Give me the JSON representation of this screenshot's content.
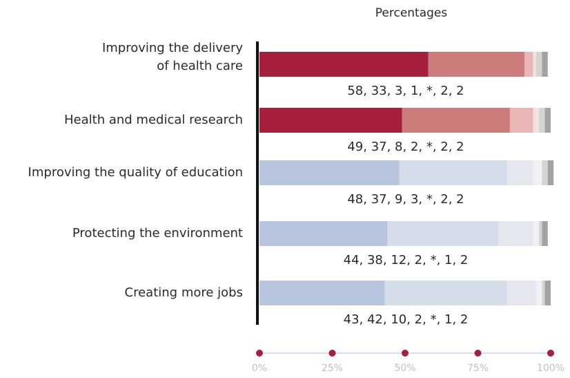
{
  "chart_data": {
    "type": "stacked_bar_horizontal",
    "title": "Percentages",
    "categories": [
      "Improving the delivery\nof health care",
      "Health and medical research",
      "Improving the quality of education",
      "Protecting the environment",
      "Creating more jobs"
    ],
    "series": [
      {
        "values": [
          58,
          49,
          48,
          44,
          43
        ],
        "colors": [
          "#a61f3d",
          "#a61f3d",
          "#b8c5de",
          "#b8c5de",
          "#b8c5de"
        ]
      },
      {
        "values": [
          33,
          37,
          37,
          38,
          42
        ],
        "colors": [
          "#cd7a7b",
          "#cd7a7b",
          "#d5dcea",
          "#d5dcea",
          "#d5dcea"
        ]
      },
      {
        "values": [
          3,
          8,
          9,
          12,
          10
        ],
        "colors": [
          "#e9b8b6",
          "#e9b8b6",
          "#e4e7ee",
          "#e4e7ee",
          "#e4e7ee"
        ]
      },
      {
        "values": [
          1,
          2,
          3,
          2,
          2
        ],
        "colors": [
          "#f3e2e1",
          "#f3e2e1",
          "#f0f1f4",
          "#f0f1f4",
          "#f0f1f4"
        ]
      },
      {
        "values": [
          0,
          0,
          0,
          0,
          0
        ],
        "colors": [
          "#ffffff",
          "#ffffff",
          "#ffffff",
          "#ffffff",
          "#ffffff"
        ]
      },
      {
        "values": [
          2,
          2,
          2,
          1,
          1
        ],
        "colors": [
          "#d4d4d4",
          "#d4d4d4",
          "#d4d4d4",
          "#d4d4d4",
          "#d4d4d4"
        ]
      },
      {
        "values": [
          2,
          2,
          2,
          2,
          2
        ],
        "colors": [
          "#a3a3a3",
          "#a3a3a3",
          "#a3a3a3",
          "#a3a3a3",
          "#a3a3a3"
        ]
      }
    ],
    "data_labels": [
      "58, 33, 3, 1, *, 2, 2",
      "49, 37, 8, 2, *, 2, 2",
      "48, 37, 9, 3, *, 2, 2",
      "44, 38, 12, 2, *, 1, 2",
      "43, 42, 10, 2, *, 1, 2"
    ],
    "xlim": [
      0,
      100
    ],
    "xticks": [
      {
        "value": 0,
        "label": "0%"
      },
      {
        "value": 25,
        "label": "25%"
      },
      {
        "value": 50,
        "label": "50%"
      },
      {
        "value": 75,
        "label": "75%"
      },
      {
        "value": 100,
        "label": "100%"
      }
    ],
    "tick_color": "#a61f3d"
  }
}
